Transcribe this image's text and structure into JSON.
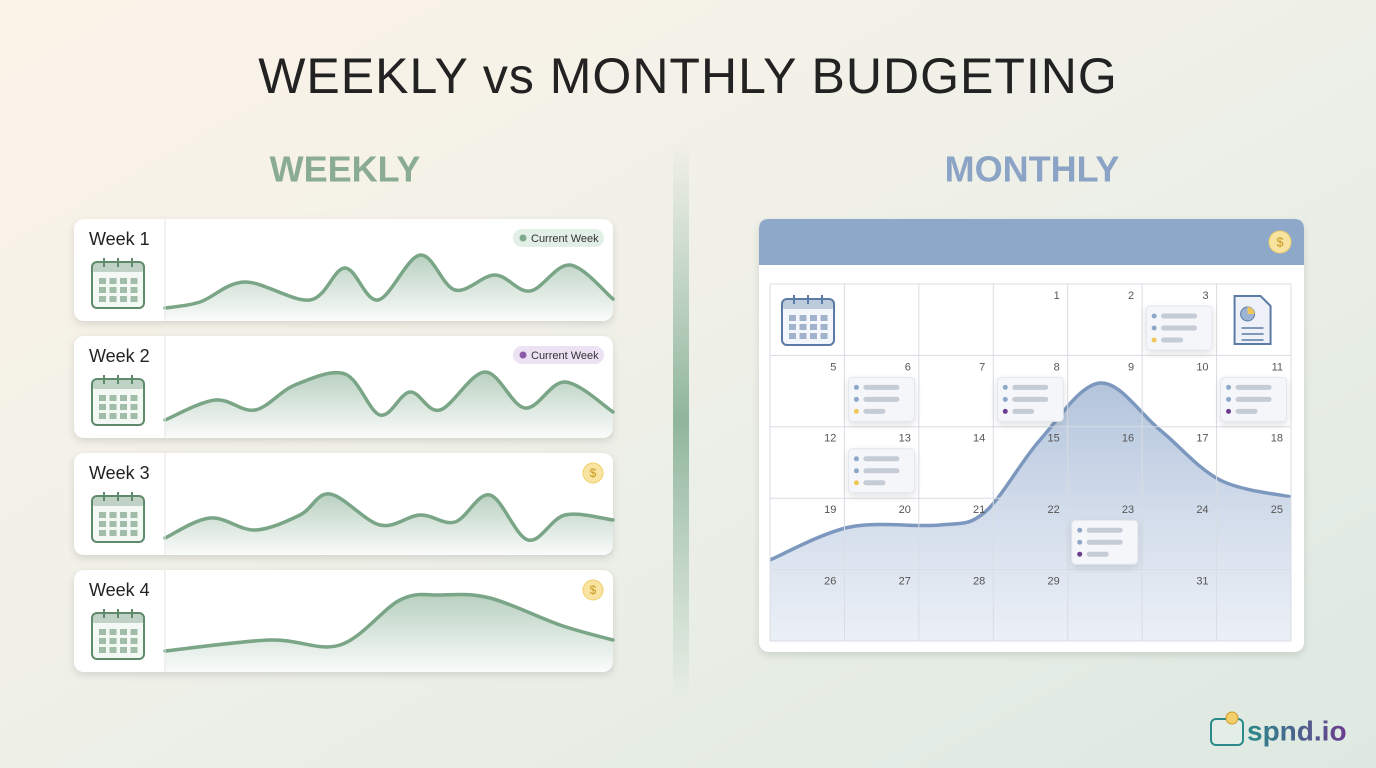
{
  "title": "WEEKLY vs MONTHLY BUDGETING",
  "weekly": {
    "heading": "WEEKLY",
    "weeks": [
      {
        "label": "Week 1",
        "badge": "Current Week"
      },
      {
        "label": "Week 2",
        "badge": "Current Week"
      },
      {
        "label": "Week 3",
        "badge": "$"
      },
      {
        "label": "Week 4",
        "badge": "$"
      }
    ]
  },
  "monthly": {
    "heading": "MONTHLY",
    "badge": "$",
    "rows": [
      [
        null,
        null,
        null,
        "1",
        "2",
        "3",
        null
      ],
      [
        "5",
        "6",
        "7",
        "8",
        "9",
        "10",
        "11"
      ],
      [
        "12",
        "13",
        "14",
        "15",
        "16",
        "17",
        "18"
      ],
      [
        "19",
        "20",
        "21",
        "22",
        "23",
        "24",
        "25"
      ],
      [
        "26",
        "27",
        "28",
        "29",
        null,
        "31",
        null
      ]
    ]
  },
  "logo": "spnd.io"
}
